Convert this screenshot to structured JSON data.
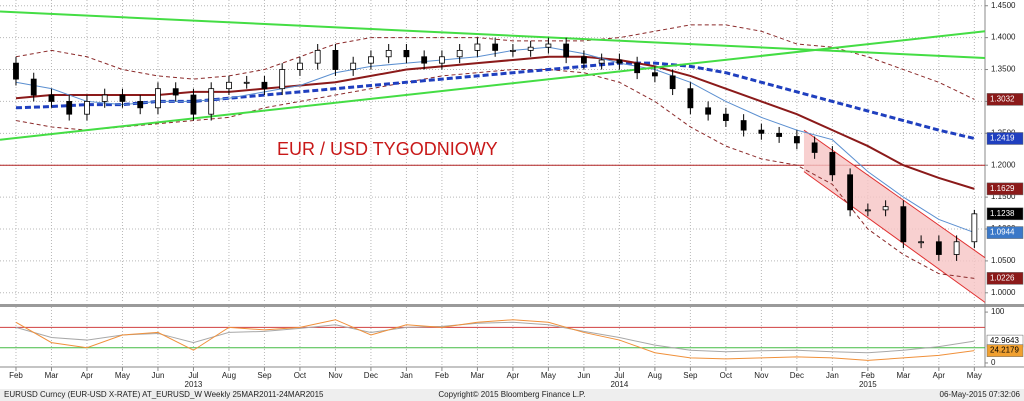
{
  "chart_data": [
    {
      "type": "candlestick",
      "annotation": "EUR / USD TYGODNIOWY",
      "xlim": [
        -0.45,
        27.3
      ],
      "ylim": [
        0.984,
        1.459
      ],
      "xticks": [
        {
          "value": 0,
          "label": "Feb"
        },
        {
          "value": 1,
          "label": "Mar"
        },
        {
          "value": 2,
          "label": "Apr"
        },
        {
          "value": 3,
          "label": "May"
        },
        {
          "value": 4,
          "label": "Jun"
        },
        {
          "value": 5,
          "label": "Jul"
        },
        {
          "value": 6,
          "label": "Aug"
        },
        {
          "value": 7,
          "label": "Sep"
        },
        {
          "value": 8,
          "label": "Oct"
        },
        {
          "value": 9,
          "label": "Nov"
        },
        {
          "value": 10,
          "label": "Dec"
        },
        {
          "value": 11,
          "label": "Jan"
        },
        {
          "value": 12,
          "label": "Feb"
        },
        {
          "value": 13,
          "label": "Mar"
        },
        {
          "value": 14,
          "label": "Apr"
        },
        {
          "value": 15,
          "label": "May"
        },
        {
          "value": 16,
          "label": "Jun"
        },
        {
          "value": 17,
          "label": "Jul"
        },
        {
          "value": 18,
          "label": "Aug"
        },
        {
          "value": 19,
          "label": "Sep"
        },
        {
          "value": 20,
          "label": "Oct"
        },
        {
          "value": 21,
          "label": "Nov"
        },
        {
          "value": 22,
          "label": "Dec"
        },
        {
          "value": 23,
          "label": "Jan"
        },
        {
          "value": 24,
          "label": "Feb"
        },
        {
          "value": 25,
          "label": "Mar"
        },
        {
          "value": 26,
          "label": "Apr"
        },
        {
          "value": 27,
          "label": "May"
        }
      ],
      "year_labels": [
        {
          "value": 5,
          "label": "2013"
        },
        {
          "value": 17,
          "label": "2014"
        },
        {
          "value": 24,
          "label": "2015"
        }
      ],
      "yticks": [
        {
          "value": 1.45,
          "label": "1.4500"
        },
        {
          "value": 1.4,
          "label": "1.4000"
        },
        {
          "value": 1.35,
          "label": "1.3500"
        },
        {
          "value": 1.3,
          "label": "1.3000"
        },
        {
          "value": 1.25,
          "label": "1.2500"
        },
        {
          "value": 1.2,
          "label": "1.2000"
        },
        {
          "value": 1.15,
          "label": "1.1500"
        },
        {
          "value": 1.1,
          "label": "1.1000"
        },
        {
          "value": 1.05,
          "label": "1.0500"
        },
        {
          "value": 1.0,
          "label": "1.0000"
        }
      ],
      "grid": true,
      "x": [
        0,
        0.5,
        1,
        1.5,
        2,
        2.5,
        3,
        3.5,
        4,
        4.5,
        5,
        5.5,
        6,
        6.5,
        7,
        7.5,
        8,
        8.5,
        9,
        9.5,
        10,
        10.5,
        11,
        11.5,
        12,
        12.5,
        13,
        13.5,
        14,
        14.5,
        15,
        15.5,
        16,
        16.5,
        17,
        17.5,
        18,
        18.5,
        19,
        19.5,
        20,
        20.5,
        21,
        21.5,
        22,
        22.5,
        23,
        23.5,
        24,
        24.5,
        25,
        25.5,
        26,
        26.5,
        27
      ],
      "open": [
        1.36,
        1.335,
        1.31,
        1.3,
        1.28,
        1.3,
        1.31,
        1.3,
        1.29,
        1.32,
        1.31,
        1.28,
        1.32,
        1.33,
        1.33,
        1.32,
        1.35,
        1.36,
        1.38,
        1.35,
        1.36,
        1.37,
        1.38,
        1.37,
        1.36,
        1.37,
        1.38,
        1.39,
        1.38,
        1.38,
        1.385,
        1.39,
        1.37,
        1.36,
        1.365,
        1.36,
        1.345,
        1.34,
        1.32,
        1.29,
        1.28,
        1.27,
        1.255,
        1.25,
        1.245,
        1.235,
        1.22,
        1.185,
        1.13,
        1.13,
        1.135,
        1.08,
        1.08,
        1.06,
        1.08
      ],
      "high": [
        1.37,
        1.345,
        1.32,
        1.31,
        1.31,
        1.32,
        1.32,
        1.31,
        1.33,
        1.33,
        1.32,
        1.33,
        1.34,
        1.34,
        1.34,
        1.36,
        1.37,
        1.39,
        1.39,
        1.37,
        1.38,
        1.39,
        1.39,
        1.38,
        1.38,
        1.39,
        1.4,
        1.4,
        1.39,
        1.395,
        1.4,
        1.4,
        1.38,
        1.375,
        1.375,
        1.37,
        1.355,
        1.35,
        1.33,
        1.3,
        1.29,
        1.28,
        1.265,
        1.26,
        1.255,
        1.245,
        1.23,
        1.195,
        1.14,
        1.145,
        1.145,
        1.09,
        1.09,
        1.09,
        1.13
      ],
      "low": [
        1.325,
        1.3,
        1.29,
        1.27,
        1.27,
        1.29,
        1.29,
        1.28,
        1.28,
        1.3,
        1.27,
        1.27,
        1.31,
        1.32,
        1.31,
        1.31,
        1.34,
        1.35,
        1.34,
        1.34,
        1.35,
        1.36,
        1.36,
        1.35,
        1.35,
        1.36,
        1.37,
        1.37,
        1.37,
        1.37,
        1.375,
        1.36,
        1.35,
        1.35,
        1.35,
        1.335,
        1.33,
        1.31,
        1.28,
        1.27,
        1.26,
        1.245,
        1.24,
        1.235,
        1.225,
        1.21,
        1.175,
        1.12,
        1.12,
        1.12,
        1.07,
        1.07,
        1.05,
        1.05,
        1.07
      ],
      "close": [
        1.335,
        1.31,
        1.3,
        1.28,
        1.3,
        1.31,
        1.3,
        1.29,
        1.32,
        1.31,
        1.28,
        1.32,
        1.33,
        1.33,
        1.32,
        1.35,
        1.36,
        1.38,
        1.35,
        1.36,
        1.37,
        1.38,
        1.37,
        1.36,
        1.37,
        1.38,
        1.39,
        1.38,
        1.38,
        1.385,
        1.39,
        1.37,
        1.36,
        1.365,
        1.36,
        1.345,
        1.34,
        1.32,
        1.29,
        1.28,
        1.27,
        1.255,
        1.25,
        1.245,
        1.235,
        1.22,
        1.185,
        1.13,
        1.13,
        1.135,
        1.08,
        1.08,
        1.06,
        1.08,
        1.1238
      ],
      "close_label_color": "#000000",
      "series": [
        {
          "color": "#8b2a2a",
          "dash": true,
          "label_color": "#8b1a1a",
          "x": [
            0,
            1,
            2,
            3,
            4,
            5,
            6,
            7,
            8,
            9,
            10,
            11,
            12,
            13,
            14,
            15,
            16,
            17,
            18,
            19,
            20,
            21,
            22,
            23,
            24,
            25,
            26,
            27
          ],
          "values": [
            1.37,
            1.38,
            1.37,
            1.35,
            1.34,
            1.335,
            1.34,
            1.35,
            1.37,
            1.39,
            1.4,
            1.4,
            1.4,
            1.4,
            1.395,
            1.395,
            1.395,
            1.4,
            1.41,
            1.42,
            1.42,
            1.41,
            1.39,
            1.385,
            1.37,
            1.35,
            1.33,
            1.3032
          ]
        },
        {
          "color": "#8b2a2a",
          "dash": true,
          "label_color": "#8b1a1a",
          "x": [
            0,
            1,
            2,
            3,
            4,
            5,
            6,
            7,
            8,
            9,
            10,
            11,
            12,
            13,
            14,
            15,
            16,
            17,
            18,
            19,
            20,
            21,
            22,
            23,
            24,
            25,
            26,
            27
          ],
          "values": [
            1.27,
            1.26,
            1.255,
            1.26,
            1.265,
            1.27,
            1.275,
            1.29,
            1.3,
            1.31,
            1.32,
            1.33,
            1.34,
            1.345,
            1.35,
            1.35,
            1.345,
            1.33,
            1.3,
            1.26,
            1.23,
            1.21,
            1.2,
            1.17,
            1.1,
            1.06,
            1.03,
            1.0226
          ]
        },
        {
          "color": "#1f3fbf",
          "dash": true,
          "width": 3,
          "label_color": "#1f3fbf",
          "x": [
            0,
            1,
            2,
            3,
            4,
            5,
            6,
            7,
            8,
            9,
            10,
            11,
            12,
            13,
            14,
            15,
            16,
            17,
            18,
            19,
            20,
            21,
            22,
            23,
            24,
            25,
            26,
            27
          ],
          "values": [
            1.29,
            1.292,
            1.295,
            1.295,
            1.3,
            1.3,
            1.305,
            1.31,
            1.315,
            1.32,
            1.325,
            1.33,
            1.335,
            1.34,
            1.345,
            1.35,
            1.355,
            1.36,
            1.36,
            1.355,
            1.345,
            1.33,
            1.315,
            1.3,
            1.285,
            1.27,
            1.255,
            1.2419
          ]
        },
        {
          "color": "#8b1a1a",
          "width": 2,
          "label_color": "#8b1a1a",
          "x": [
            0,
            1,
            2,
            3,
            4,
            5,
            6,
            7,
            8,
            9,
            10,
            11,
            12,
            13,
            14,
            15,
            16,
            17,
            18,
            19,
            20,
            21,
            22,
            23,
            24,
            25,
            26,
            27
          ],
          "values": [
            1.305,
            1.31,
            1.31,
            1.31,
            1.31,
            1.315,
            1.315,
            1.32,
            1.325,
            1.33,
            1.34,
            1.35,
            1.355,
            1.36,
            1.365,
            1.37,
            1.37,
            1.365,
            1.355,
            1.34,
            1.32,
            1.3,
            1.28,
            1.255,
            1.23,
            1.2,
            1.18,
            1.1629
          ]
        },
        {
          "color": "#5b8fd0",
          "width": 1,
          "label_color": "#3a78c8",
          "x": [
            0,
            1,
            2,
            3,
            4,
            5,
            6,
            7,
            8,
            9,
            10,
            11,
            12,
            13,
            14,
            15,
            16,
            17,
            18,
            19,
            20,
            21,
            22,
            23,
            24,
            25,
            26,
            27
          ],
          "values": [
            1.33,
            1.32,
            1.3,
            1.295,
            1.3,
            1.3,
            1.305,
            1.315,
            1.325,
            1.345,
            1.355,
            1.36,
            1.365,
            1.37,
            1.38,
            1.385,
            1.375,
            1.36,
            1.35,
            1.33,
            1.3,
            1.275,
            1.255,
            1.24,
            1.19,
            1.15,
            1.115,
            1.0944
          ]
        },
        {
          "color": "#44dd44",
          "width": 2,
          "x": [
            -0.45,
            27.3
          ],
          "values": [
            1.441,
            1.368
          ]
        },
        {
          "color": "#44dd44",
          "width": 2,
          "x": [
            -0.45,
            27.3
          ],
          "values": [
            1.24,
            1.41
          ]
        }
      ],
      "hlines": [
        {
          "value": 1.2,
          "color": "#b22222"
        }
      ],
      "channel": {
        "x": [
          22.2,
          27.3
        ],
        "upper": [
          1.255,
          1.055
        ],
        "lower": [
          1.19,
          0.985
        ],
        "color": "#e03030",
        "fill": "#f6c4c4"
      },
      "footer": {
        "left": "EURUSD Curncy (EUR-USD X-RATE) AT_EURUSD_W  Weekly 25MAR2011-24MAR2015",
        "center": "Copyright© 2015 Bloomberg Finance L.P.",
        "right": "06-May-2015 07:32:06"
      }
    },
    {
      "type": "line",
      "ylim": [
        -6,
        110
      ],
      "yticks": [
        100,
        0
      ],
      "hlines": [
        {
          "value": 70,
          "color": "#d04040"
        },
        {
          "value": 30,
          "color": "#44bb44"
        }
      ],
      "series": [
        {
          "color": "#a8a8a8",
          "label_color": "#ffffff",
          "x": [
            0,
            1,
            2,
            3,
            4,
            5,
            6,
            7,
            8,
            9,
            10,
            11,
            12,
            13,
            14,
            15,
            16,
            17,
            18,
            19,
            20,
            21,
            22,
            23,
            24,
            25,
            26,
            27
          ],
          "values": [
            70,
            50,
            45,
            55,
            58,
            40,
            60,
            62,
            68,
            75,
            60,
            70,
            72,
            78,
            80,
            75,
            62,
            50,
            35,
            25,
            22,
            24,
            25,
            22,
            20,
            25,
            32,
            42.9643
          ]
        },
        {
          "color": "#f0903a",
          "label_color": "#f0a030",
          "x": [
            0,
            1,
            2,
            3,
            4,
            5,
            6,
            7,
            8,
            9,
            10,
            11,
            12,
            13,
            14,
            15,
            16,
            17,
            18,
            19,
            20,
            21,
            22,
            23,
            24,
            25,
            26,
            27
          ],
          "values": [
            80,
            40,
            30,
            55,
            60,
            25,
            70,
            65,
            70,
            85,
            55,
            75,
            70,
            80,
            85,
            80,
            60,
            45,
            20,
            10,
            8,
            10,
            12,
            10,
            5,
            10,
            15,
            24.2179
          ]
        }
      ]
    }
  ]
}
